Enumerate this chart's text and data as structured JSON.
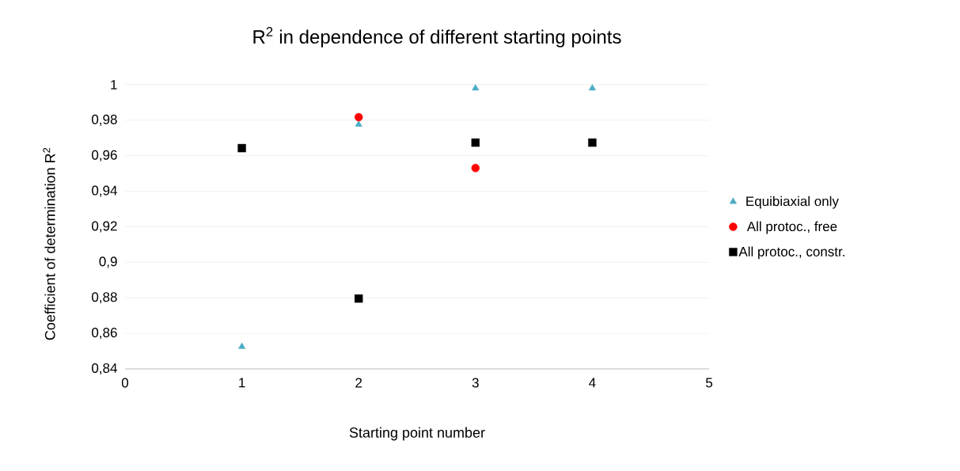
{
  "chart_data": {
    "type": "scatter",
    "title": "R$^{2}$ in dependence of different starting points",
    "xlabel": "Starting point number",
    "ylabel": "Coefficient of determination R$^{2}$",
    "x": [
      1,
      2,
      3,
      4
    ],
    "series": [
      {
        "name": "Equibiaxial only",
        "color": "#4bacc6",
        "marker": "triangle",
        "values": [
          0.8525,
          0.9776,
          0.998,
          0.998
        ]
      },
      {
        "name": "All protoc., free",
        "color": "#ff0000",
        "marker": "circle",
        "values": [
          null,
          0.9817,
          0.9531,
          null
        ]
      },
      {
        "name": "All protoc., constr.",
        "color": "#000000",
        "marker": "square",
        "values": [
          0.9643,
          0.8796,
          0.9674,
          0.9674
        ]
      }
    ],
    "xlim": [
      0,
      5
    ],
    "xticks": [
      0,
      1,
      2,
      3,
      4,
      5
    ],
    "ylim": [
      0.84,
      1
    ],
    "yticks": [
      {
        "value": 0.84,
        "label": "0,84"
      },
      {
        "value": 0.86,
        "label": "0,86"
      },
      {
        "value": 0.88,
        "label": "0,88"
      },
      {
        "value": 0.9,
        "label": "0,9"
      },
      {
        "value": 0.92,
        "label": "0,92"
      },
      {
        "value": 0.94,
        "label": "0,94"
      },
      {
        "value": 0.96,
        "label": "0,96"
      },
      {
        "value": 0.98,
        "label": "0,98"
      },
      {
        "value": 1,
        "label": "1"
      }
    ],
    "grid": "y",
    "legend": "right"
  }
}
